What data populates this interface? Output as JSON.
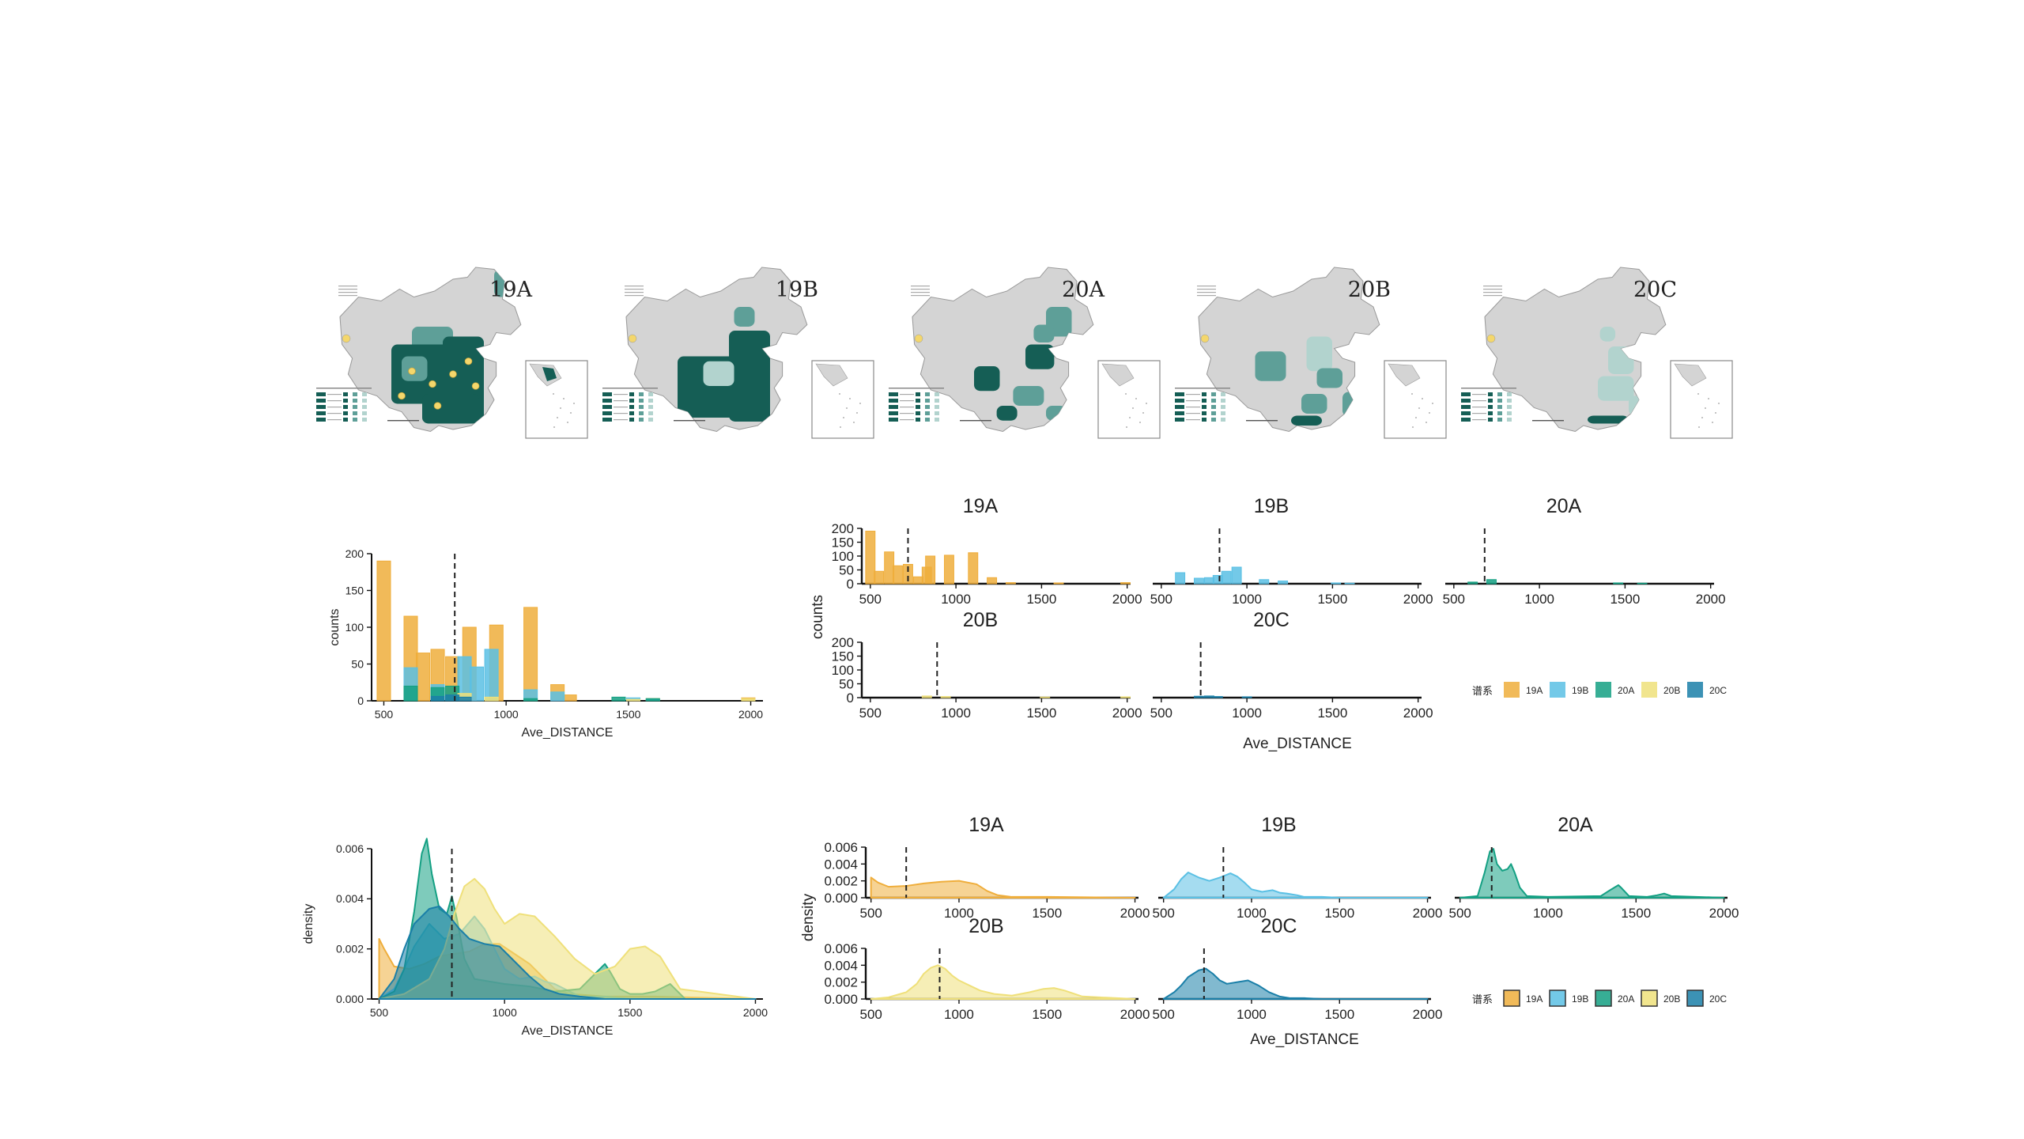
{
  "maps": [
    {
      "label": "19A"
    },
    {
      "label": "19B"
    },
    {
      "label": "20A"
    },
    {
      "label": "20B"
    },
    {
      "label": "20C"
    }
  ],
  "colors": {
    "19A": "#EFAE3C",
    "19B": "#5BC0E4",
    "20A": "#14A083",
    "20B": "#EFE07A",
    "20C": "#1A7FA8",
    "map_dark": "#155E55",
    "map_mid": "#5E9F98",
    "map_light": "#B2D3CE",
    "map_base": "#D4D4D4"
  },
  "legend": {
    "title": "谱系",
    "labels": [
      "19A",
      "19B",
      "20A",
      "20B",
      "20C"
    ]
  },
  "chart_data": [
    {
      "id": "hist_overall",
      "type": "bar",
      "xlabel": "Ave_DISTANCE",
      "ylabel": "counts",
      "xlim": [
        450,
        2050
      ],
      "ylim": [
        0,
        200
      ],
      "xticks": [
        500,
        1000,
        1500,
        2000
      ],
      "yticks": [
        0,
        50,
        100,
        150,
        200
      ],
      "mean_line": 790,
      "bin_width": 55,
      "series": [
        {
          "name": "19A",
          "bins": [
            [
              500,
              190
            ],
            [
              610,
              115
            ],
            [
              660,
              65
            ],
            [
              720,
              70
            ],
            [
              780,
              60
            ],
            [
              850,
              100
            ],
            [
              960,
              103
            ],
            [
              1100,
              127
            ],
            [
              1210,
              22
            ],
            [
              1260,
              8
            ],
            [
              1600,
              3
            ],
            [
              1990,
              4
            ]
          ]
        },
        {
          "name": "19B",
          "bins": [
            [
              610,
              45
            ],
            [
              720,
              22
            ],
            [
              830,
              60
            ],
            [
              880,
              46
            ],
            [
              940,
              70
            ],
            [
              1100,
              15
            ],
            [
              1210,
              12
            ],
            [
              1520,
              4
            ],
            [
              1600,
              2
            ]
          ]
        },
        {
          "name": "20A",
          "bins": [
            [
              610,
              20
            ],
            [
              720,
              18
            ],
            [
              780,
              20
            ],
            [
              1100,
              3
            ],
            [
              1460,
              5
            ],
            [
              1600,
              3
            ]
          ]
        },
        {
          "name": "20B",
          "bins": [
            [
              830,
              10
            ],
            [
              940,
              5
            ],
            [
              1520,
              2
            ],
            [
              1990,
              3
            ]
          ]
        },
        {
          "name": "20C",
          "bins": [
            [
              720,
              6
            ],
            [
              780,
              8
            ],
            [
              830,
              5
            ]
          ]
        }
      ]
    },
    {
      "id": "hist_facets",
      "type": "bar",
      "xlabel": "Ave_DISTANCE",
      "ylabel": "counts",
      "xlim": [
        450,
        2020
      ],
      "ylim": [
        0,
        200
      ],
      "xticks": [
        500,
        1000,
        1500,
        2000
      ],
      "yticks": [
        0,
        50,
        100,
        150,
        200
      ],
      "bin_width": 55,
      "panels": [
        {
          "name": "19A",
          "mean_line": 720,
          "bins": [
            [
              500,
              190
            ],
            [
              550,
              45
            ],
            [
              610,
              115
            ],
            [
              660,
              65
            ],
            [
              720,
              70
            ],
            [
              780,
              25
            ],
            [
              830,
              60
            ],
            [
              850,
              100
            ],
            [
              960,
              103
            ],
            [
              1100,
              112
            ],
            [
              1210,
              22
            ],
            [
              1320,
              4
            ],
            [
              1600,
              3
            ],
            [
              1990,
              4
            ]
          ]
        },
        {
          "name": "19B",
          "mean_line": 840,
          "bins": [
            [
              610,
              40
            ],
            [
              720,
              20
            ],
            [
              780,
              22
            ],
            [
              830,
              30
            ],
            [
              880,
              45
            ],
            [
              940,
              60
            ],
            [
              1100,
              15
            ],
            [
              1210,
              10
            ],
            [
              1520,
              3
            ],
            [
              1600,
              2
            ]
          ]
        },
        {
          "name": "20A",
          "mean_line": 680,
          "bins": [
            [
              610,
              6
            ],
            [
              720,
              15
            ],
            [
              1460,
              3
            ],
            [
              1600,
              2
            ]
          ]
        },
        {
          "name": "20B",
          "mean_line": 890,
          "bins": [
            [
              830,
              6
            ],
            [
              940,
              4
            ],
            [
              1520,
              2
            ],
            [
              1990,
              3
            ]
          ]
        },
        {
          "name": "20C",
          "mean_line": 730,
          "bins": [
            [
              720,
              5
            ],
            [
              780,
              6
            ],
            [
              830,
              4
            ],
            [
              1000,
              3
            ]
          ]
        }
      ]
    },
    {
      "id": "density_overall",
      "type": "area",
      "xlabel": "Ave_DISTANCE",
      "ylabel": "density",
      "xlim": [
        470,
        2030
      ],
      "ylim": [
        0,
        0.006
      ],
      "xticks": [
        500,
        1000,
        1500,
        2000
      ],
      "yticks": [
        0,
        0.002,
        0.004,
        0.006
      ],
      "yticklabels": [
        "0.000",
        "0.002",
        "0.004",
        "0.006"
      ],
      "mean_line": 790,
      "series": [
        {
          "name": "19A",
          "x": [
            500,
            520,
            560,
            620,
            680,
            740,
            800,
            860,
            920,
            980,
            1040,
            1100,
            1160,
            1200,
            1260,
            1400,
            1600,
            2000
          ],
          "y": [
            0.0024,
            0.002,
            0.0013,
            0.0012,
            0.0014,
            0.0017,
            0.0018,
            0.0019,
            0.0022,
            0.0022,
            0.0018,
            0.0014,
            0.0008,
            0.0004,
            0.0002,
            0.0001,
            0.0001,
            0.0
          ]
        },
        {
          "name": "19B",
          "x": [
            500,
            560,
            600,
            640,
            700,
            760,
            820,
            880,
            920,
            960,
            1000,
            1060,
            1120,
            1160,
            1200,
            1260,
            1300,
            1400,
            1500,
            2000
          ],
          "y": [
            0.0,
            0.0004,
            0.0012,
            0.0021,
            0.003,
            0.0024,
            0.0026,
            0.0033,
            0.0028,
            0.002,
            0.0012,
            0.0008,
            0.0009,
            0.0007,
            0.0006,
            0.0003,
            0.0001,
            0.0001,
            0.0,
            0.0
          ]
        },
        {
          "name": "20A",
          "x": [
            500,
            560,
            600,
            640,
            670,
            690,
            710,
            740,
            770,
            790,
            810,
            840,
            880,
            940,
            1000,
            1100,
            1200,
            1300,
            1360,
            1400,
            1420,
            1460,
            1500,
            1550,
            1600,
            1640,
            1660,
            1680,
            1720,
            2000
          ],
          "y": [
            0.0,
            0.0003,
            0.0012,
            0.0035,
            0.0058,
            0.0064,
            0.005,
            0.0036,
            0.0034,
            0.0041,
            0.0032,
            0.0016,
            0.0008,
            0.0007,
            0.0006,
            0.0005,
            0.0003,
            0.0004,
            0.001,
            0.0014,
            0.0011,
            0.0004,
            0.0002,
            0.0002,
            0.0003,
            0.0005,
            0.0006,
            0.0004,
            0.0,
            0.0
          ]
        },
        {
          "name": "20B",
          "x": [
            500,
            600,
            700,
            760,
            800,
            840,
            880,
            920,
            960,
            1000,
            1060,
            1120,
            1200,
            1280,
            1360,
            1440,
            1500,
            1560,
            1620,
            1700,
            2000
          ],
          "y": [
            0.0,
            0.0002,
            0.0008,
            0.002,
            0.0034,
            0.0045,
            0.0048,
            0.0044,
            0.0036,
            0.003,
            0.0034,
            0.0033,
            0.0025,
            0.0016,
            0.001,
            0.0013,
            0.002,
            0.0021,
            0.0017,
            0.0004,
            0.0
          ]
        },
        {
          "name": "20C",
          "x": [
            500,
            560,
            600,
            640,
            700,
            740,
            780,
            820,
            860,
            920,
            980,
            1040,
            1100,
            1160,
            1220,
            1300,
            1400,
            2000
          ],
          "y": [
            0.0,
            0.0008,
            0.002,
            0.003,
            0.0036,
            0.0037,
            0.0033,
            0.0028,
            0.0024,
            0.0022,
            0.0021,
            0.0015,
            0.0009,
            0.0004,
            0.0002,
            0.0001,
            0.0,
            0.0
          ]
        }
      ]
    },
    {
      "id": "density_facets",
      "type": "area",
      "xlabel": "Ave_DISTANCE",
      "ylabel": "density",
      "xlim": [
        470,
        2020
      ],
      "ylim": [
        0,
        0.006
      ],
      "xticks": [
        500,
        1000,
        1500,
        2000
      ],
      "yticks": [
        0,
        0.002,
        0.004,
        0.006
      ],
      "yticklabels": [
        "0.000",
        "0.002",
        "0.004",
        "0.006"
      ],
      "panels": [
        {
          "name": "19A",
          "mean_line": 700,
          "x": [
            500,
            540,
            600,
            700,
            800,
            900,
            1000,
            1100,
            1160,
            1220,
            1300,
            1500,
            2000
          ],
          "y": [
            0.0024,
            0.0018,
            0.0013,
            0.0014,
            0.0017,
            0.0019,
            0.002,
            0.0016,
            0.0008,
            0.0003,
            0.0001,
            0.0001,
            0.0
          ]
        },
        {
          "name": "19B",
          "mean_line": 840,
          "x": [
            500,
            560,
            600,
            640,
            700,
            760,
            820,
            880,
            920,
            960,
            1000,
            1060,
            1120,
            1160,
            1200,
            1260,
            1300,
            1400,
            1500,
            2000
          ],
          "y": [
            0.0,
            0.001,
            0.0022,
            0.003,
            0.0024,
            0.002,
            0.0024,
            0.0029,
            0.0025,
            0.0018,
            0.001,
            0.0007,
            0.0009,
            0.0006,
            0.0005,
            0.0003,
            0.0001,
            0.0001,
            0.0,
            0.0
          ]
        },
        {
          "name": "20A",
          "mean_line": 680,
          "x": [
            500,
            600,
            640,
            670,
            690,
            710,
            740,
            770,
            790,
            810,
            840,
            880,
            1000,
            1300,
            1360,
            1400,
            1420,
            1460,
            1560,
            1620,
            1660,
            1700,
            2000
          ],
          "y": [
            0.0,
            0.0002,
            0.003,
            0.0055,
            0.0058,
            0.004,
            0.0032,
            0.0034,
            0.004,
            0.003,
            0.0012,
            0.0002,
            0.0001,
            0.0002,
            0.001,
            0.0015,
            0.0011,
            0.0002,
            0.0001,
            0.0003,
            0.0005,
            0.0002,
            0.0
          ]
        },
        {
          "name": "20B",
          "mean_line": 890,
          "x": [
            500,
            600,
            700,
            760,
            800,
            840,
            880,
            920,
            960,
            1000,
            1060,
            1120,
            1200,
            1300,
            1400,
            1480,
            1540,
            1600,
            1700,
            2000
          ],
          "y": [
            0.0,
            0.0002,
            0.0008,
            0.0018,
            0.003,
            0.0037,
            0.004,
            0.0036,
            0.0028,
            0.0022,
            0.0016,
            0.001,
            0.0006,
            0.0004,
            0.0008,
            0.0012,
            0.0013,
            0.001,
            0.0003,
            0.0
          ]
        },
        {
          "name": "20C",
          "mean_line": 730,
          "x": [
            500,
            560,
            600,
            640,
            700,
            740,
            780,
            820,
            860,
            920,
            980,
            1040,
            1100,
            1160,
            1220,
            1300,
            1400,
            2000
          ],
          "y": [
            0.0,
            0.0008,
            0.0016,
            0.0026,
            0.0034,
            0.0036,
            0.003,
            0.0022,
            0.0018,
            0.002,
            0.0022,
            0.0016,
            0.0008,
            0.0003,
            0.0001,
            0.0001,
            0.0,
            0.0
          ]
        }
      ]
    }
  ]
}
